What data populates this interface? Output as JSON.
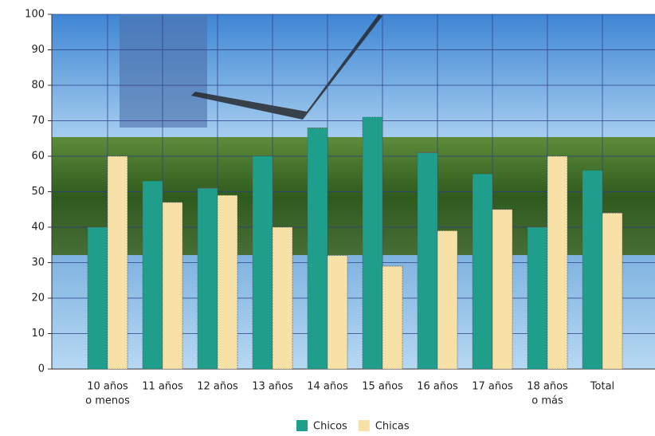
{
  "chart_data": {
    "type": "bar",
    "categories": [
      [
        "10 años",
        "o menos"
      ],
      [
        "11 años"
      ],
      [
        "12 años"
      ],
      [
        "13 años"
      ],
      [
        "14 años"
      ],
      [
        "15 años"
      ],
      [
        "16 años"
      ],
      [
        "17 años"
      ],
      [
        "18 años",
        "o más"
      ],
      [
        "Total"
      ]
    ],
    "series": [
      {
        "name": "Chicos",
        "color": "#1f9e8c",
        "values": [
          40,
          53,
          51,
          60,
          68,
          71,
          61,
          55,
          40,
          56
        ]
      },
      {
        "name": "Chicas",
        "color": "#f8e1a6",
        "values": [
          60,
          47,
          49,
          40,
          32,
          29,
          39,
          45,
          60,
          44
        ]
      }
    ],
    "ylim": [
      0,
      100
    ],
    "yticks": [
      0,
      10,
      20,
      30,
      40,
      50,
      60,
      70,
      80,
      90,
      100
    ],
    "grid": true,
    "legend": "bottom"
  }
}
